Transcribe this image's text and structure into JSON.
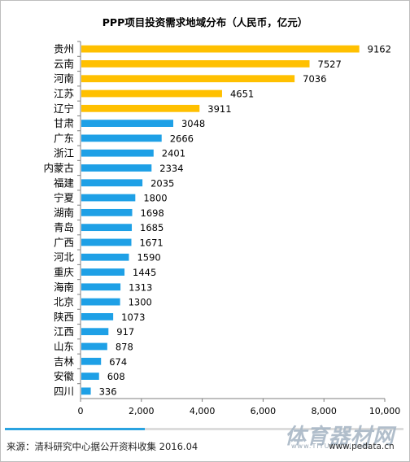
{
  "chart_data": {
    "type": "bar",
    "orientation": "horizontal",
    "title": "PPP项目投资需求地域分布（人民币，亿元）",
    "categories": [
      "贵州",
      "云南",
      "河南",
      "江苏",
      "辽宁",
      "甘肃",
      "广东",
      "浙江",
      "内蒙古",
      "福建",
      "宁夏",
      "湖南",
      "青岛",
      "广西",
      "河北",
      "重庆",
      "海南",
      "北京",
      "陕西",
      "江西",
      "山东",
      "吉林",
      "安徽",
      "四川"
    ],
    "values": [
      9162,
      7527,
      7036,
      4651,
      3911,
      3048,
      2666,
      2401,
      2334,
      2035,
      1800,
      1698,
      1685,
      1671,
      1590,
      1445,
      1313,
      1300,
      1073,
      917,
      878,
      674,
      608,
      336
    ],
    "highlight_count": 5,
    "highlight_color": "#ffc000",
    "bar_color": "#1ea0e6",
    "xlim": [
      0,
      10000
    ],
    "xticks": [
      0,
      2000,
      4000,
      6000,
      8000,
      10000
    ],
    "xtick_labels": [
      "0",
      "2,000",
      "4,000",
      "6,000",
      "8,000",
      "10,000"
    ],
    "grid": false,
    "legend": "none"
  },
  "footer": {
    "source": "来源：清科研究中心据公开资料收集 2016.04",
    "site": "www.pedata.cn",
    "watermark": "体育器材网",
    "watermark_sub": "www.TIYUQICAI.com",
    "progress": 0.35
  }
}
